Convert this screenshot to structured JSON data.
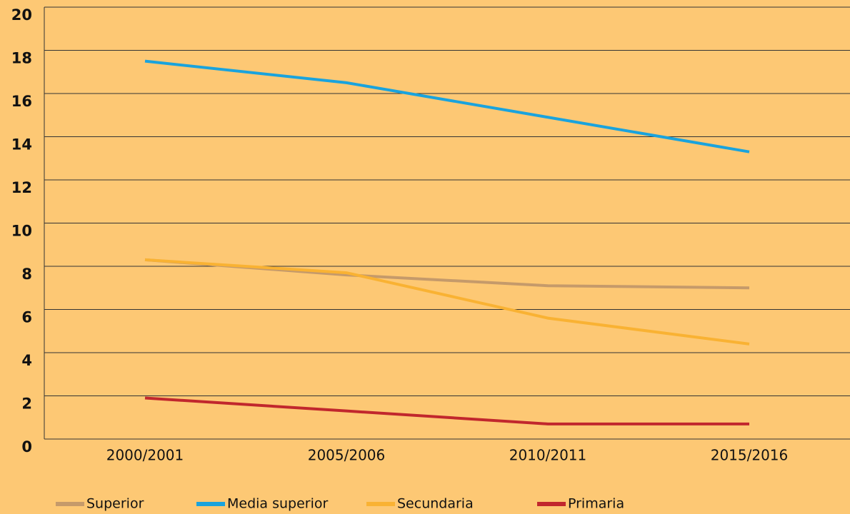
{
  "chart_data": {
    "type": "line",
    "categories": [
      "2000/2001",
      "2005/2006",
      "2010/2011",
      "2015/2016"
    ],
    "series": [
      {
        "name": "Superior",
        "color": "#c59a6a",
        "values": [
          8.3,
          7.6,
          7.1,
          7.0
        ]
      },
      {
        "name": "Media superior",
        "color": "#1aa3dd",
        "values": [
          17.5,
          16.5,
          14.9,
          13.3
        ]
      },
      {
        "name": "Secundaria",
        "color": "#f9b233",
        "values": [
          8.3,
          7.7,
          5.6,
          4.4
        ]
      },
      {
        "name": "Primaria",
        "color": "#c1272d",
        "values": [
          1.9,
          1.3,
          0.7,
          0.7
        ]
      }
    ],
    "ylim": [
      0,
      20
    ],
    "yticks": [
      0,
      2,
      4,
      6,
      8,
      10,
      12,
      14,
      16,
      18,
      20
    ],
    "grid": true,
    "legend": "bottom"
  }
}
